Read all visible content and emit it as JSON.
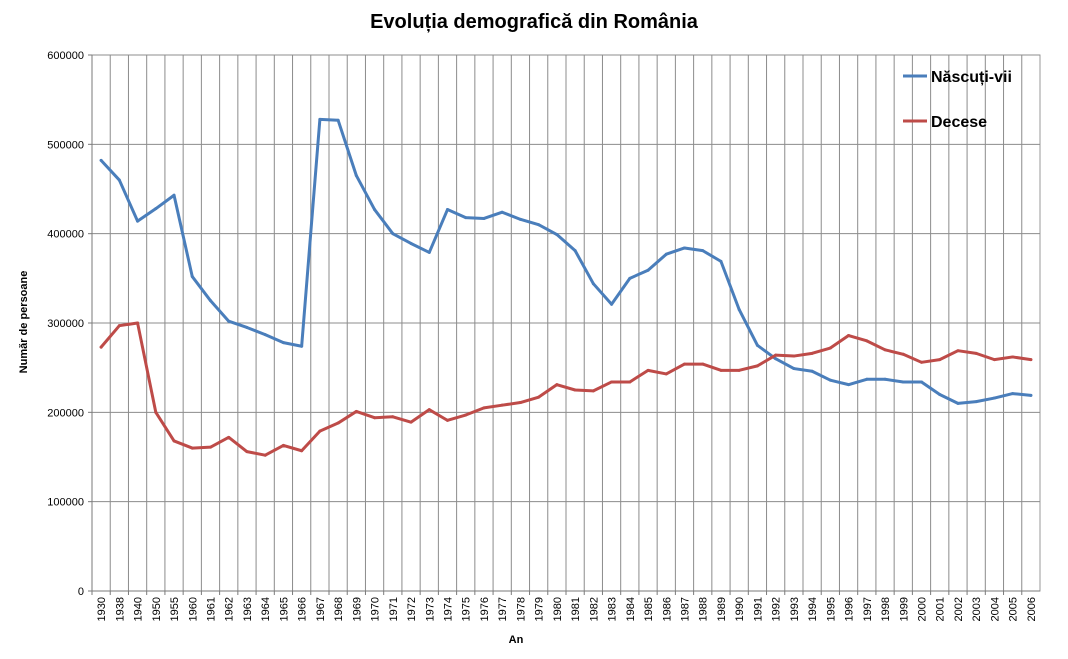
{
  "chart_data": {
    "type": "line",
    "title": "Evoluția demografică din România",
    "xlabel": "An",
    "ylabel": "Număr de persoane",
    "ylim": [
      0,
      600000
    ],
    "yticks": [
      "0",
      "100000",
      "200000",
      "300000",
      "400000",
      "500000",
      "600000"
    ],
    "grid": true,
    "legend_position": "top-right",
    "categories": [
      "1930",
      "1938",
      "1940",
      "1950",
      "1955",
      "1960",
      "1961",
      "1962",
      "1963",
      "1964",
      "1965",
      "1966",
      "1967",
      "1968",
      "1969",
      "1970",
      "1971",
      "1972",
      "1973",
      "1974",
      "1975",
      "1976",
      "1977",
      "1978",
      "1979",
      "1980",
      "1981",
      "1982",
      "1983",
      "1984",
      "1985",
      "1986",
      "1987",
      "1988",
      "1989",
      "1990",
      "1991",
      "1992",
      "1993",
      "1994",
      "1995",
      "1996",
      "1997",
      "1998",
      "1999",
      "2000",
      "2001",
      "2002",
      "2003",
      "2004",
      "2005",
      "2006"
    ],
    "series": [
      {
        "name": "Născuți-vii",
        "color": "#4a7ebb",
        "values": [
          482000,
          460000,
          414000,
          428000,
          443000,
          352000,
          325000,
          302000,
          295000,
          287000,
          278000,
          274000,
          528000,
          527000,
          465000,
          427000,
          400000,
          389000,
          379000,
          427000,
          418000,
          417000,
          424000,
          416000,
          410000,
          399000,
          381000,
          344000,
          321000,
          350000,
          359000,
          377000,
          384000,
          381000,
          369000,
          315000,
          275000,
          260000,
          249000,
          246000,
          236000,
          231000,
          237000,
          237000,
          234000,
          234000,
          220000,
          210000,
          212000,
          216000,
          221000,
          219000
        ]
      },
      {
        "name": "Decese",
        "color": "#be4b48",
        "values": [
          273000,
          297000,
          300000,
          200000,
          168000,
          160000,
          161000,
          172000,
          156000,
          152000,
          163000,
          157000,
          179000,
          188000,
          201000,
          194000,
          195000,
          189000,
          203000,
          191000,
          197000,
          205000,
          208000,
          211000,
          217000,
          231000,
          225000,
          224000,
          234000,
          234000,
          247000,
          243000,
          254000,
          254000,
          247000,
          247000,
          252000,
          264000,
          263000,
          266000,
          272000,
          286000,
          280000,
          270000,
          265000,
          256000,
          259000,
          269000,
          266000,
          259000,
          262000,
          259000
        ]
      }
    ]
  }
}
